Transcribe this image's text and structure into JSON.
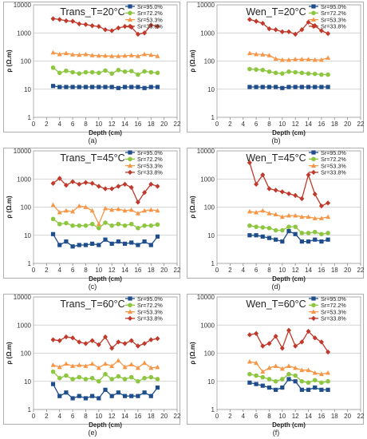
{
  "chart_data": [
    {
      "type": "line",
      "title": "Trans_T=20°C",
      "xlabel": "Depth (cm)",
      "ylabel": "ρ (Ω.m)",
      "caption": "(a)",
      "xlim": [
        0,
        22
      ],
      "xticks": [
        "0",
        "2",
        "4",
        "6",
        "8",
        "10",
        "12",
        "14",
        "16",
        "18",
        "20",
        "22"
      ],
      "ylim": [
        1,
        10000
      ],
      "yscale": "log",
      "yticks": [
        "1",
        "10",
        "100",
        "1000",
        "10000"
      ],
      "grid": true,
      "legend_position": "top-right",
      "x": [
        3,
        4,
        5,
        6,
        7,
        8,
        9,
        10,
        11,
        12,
        13,
        14,
        15,
        16,
        17,
        18,
        19
      ],
      "series": [
        {
          "name": "Sr=95.0%",
          "color": "#1f4e8c",
          "marker": "square",
          "values": [
            13,
            12,
            12,
            12,
            12,
            12,
            12,
            12,
            12,
            12,
            11,
            12,
            12,
            12,
            11,
            12,
            12
          ]
        },
        {
          "name": "Sr=72.2%",
          "color": "#8dc63f",
          "marker": "circle",
          "values": [
            58,
            38,
            45,
            40,
            36,
            40,
            40,
            38,
            46,
            36,
            48,
            42,
            44,
            33,
            43,
            40,
            38
          ]
        },
        {
          "name": "Sr=53.3%",
          "color": "#f79646",
          "marker": "triangle",
          "values": [
            200,
            175,
            190,
            170,
            165,
            175,
            160,
            155,
            155,
            150,
            150,
            155,
            160,
            150,
            175,
            165,
            150
          ]
        },
        {
          "name": "Sr=33.8%",
          "color": "#c0392b",
          "marker": "diamond",
          "values": [
            3200,
            3000,
            2700,
            2600,
            2100,
            2000,
            1800,
            1700,
            1300,
            1200,
            1500,
            1700,
            1600,
            900,
            1000,
            1900,
            1700
          ]
        }
      ]
    },
    {
      "type": "line",
      "title": "Wen_T=20°C",
      "xlabel": "Depth (cm)",
      "ylabel": "ρ (Ω.m)",
      "caption": "(b)",
      "xlim": [
        0,
        22
      ],
      "xticks": [
        "0",
        "2",
        "4",
        "6",
        "8",
        "10",
        "12",
        "14",
        "16",
        "18",
        "20",
        "22"
      ],
      "ylim": [
        1,
        10000
      ],
      "yscale": "log",
      "yticks": [
        "1",
        "10",
        "100",
        "1000",
        "10000"
      ],
      "grid": true,
      "legend_position": "top-right",
      "x": [
        5,
        6,
        7,
        8,
        9,
        10,
        11,
        12,
        13,
        14,
        15,
        16,
        17
      ],
      "series": [
        {
          "name": "Sr=95.0%",
          "color": "#1f4e8c",
          "marker": "square",
          "values": [
            12,
            12,
            12,
            12,
            12,
            11,
            12,
            12,
            12,
            12,
            12,
            12,
            12
          ]
        },
        {
          "name": "Sr=72.2%",
          "color": "#8dc63f",
          "marker": "circle",
          "values": [
            52,
            50,
            48,
            42,
            38,
            36,
            42,
            40,
            38,
            36,
            35,
            33,
            33
          ]
        },
        {
          "name": "Sr=53.3%",
          "color": "#f79646",
          "marker": "triangle",
          "values": [
            190,
            175,
            170,
            160,
            120,
            110,
            110,
            115,
            115,
            115,
            110,
            110,
            130
          ]
        },
        {
          "name": "Sr=33.8%",
          "color": "#c0392b",
          "marker": "diamond",
          "values": [
            3000,
            2600,
            2200,
            1400,
            1300,
            1100,
            1100,
            900,
            1300,
            2400,
            1800,
            1200,
            950
          ]
        }
      ]
    },
    {
      "type": "line",
      "title": "Trans_T=45°C",
      "xlabel": "Depth (cm)",
      "ylabel": "ρ (Ω.m)",
      "caption": "(c)",
      "xlim": [
        0,
        22
      ],
      "xticks": [
        "0",
        "2",
        "4",
        "6",
        "8",
        "10",
        "12",
        "14",
        "16",
        "18",
        "20",
        "22"
      ],
      "ylim": [
        1,
        10000
      ],
      "yscale": "log",
      "yticks": [
        "1",
        "10",
        "100",
        "1000",
        "10000"
      ],
      "grid": true,
      "legend_position": "top-right",
      "x": [
        3,
        4,
        5,
        6,
        7,
        8,
        9,
        10,
        11,
        12,
        13,
        14,
        15,
        16,
        17,
        18,
        19
      ],
      "series": [
        {
          "name": "Sr=95.0%",
          "color": "#1f4e8c",
          "marker": "square",
          "values": [
            11,
            4.5,
            6,
            4,
            4.5,
            4.5,
            5,
            4.5,
            7,
            5,
            6,
            5,
            5.5,
            4.5,
            6,
            4.5,
            9
          ]
        },
        {
          "name": "Sr=72.2%",
          "color": "#8dc63f",
          "marker": "circle",
          "values": [
            38,
            25,
            27,
            22,
            22,
            22,
            25,
            18,
            28,
            22,
            25,
            22,
            25,
            18,
            22,
            22,
            24
          ]
        },
        {
          "name": "Sr=53.3%",
          "color": "#f79646",
          "marker": "triangle",
          "values": [
            120,
            65,
            75,
            70,
            110,
            100,
            75,
            25,
            90,
            80,
            85,
            75,
            80,
            60,
            75,
            80,
            75
          ]
        },
        {
          "name": "Sr=33.8%",
          "color": "#c0392b",
          "marker": "diamond",
          "values": [
            700,
            1050,
            600,
            800,
            650,
            750,
            700,
            550,
            450,
            450,
            550,
            650,
            500,
            150,
            330,
            650,
            550
          ]
        }
      ]
    },
    {
      "type": "line",
      "title": "Wen_T=45°C",
      "xlabel": "Depth (cm)",
      "ylabel": "ρ (Ω.m)",
      "caption": "(d)",
      "xlim": [
        0,
        22
      ],
      "xticks": [
        "0",
        "2",
        "4",
        "6",
        "8",
        "10",
        "12",
        "14",
        "16",
        "18",
        "20",
        "22"
      ],
      "ylim": [
        1,
        10000
      ],
      "yscale": "log",
      "yticks": [
        "1",
        "10",
        "100",
        "1000",
        "10000"
      ],
      "grid": true,
      "legend_position": "top-right",
      "x": [
        5,
        6,
        7,
        8,
        9,
        10,
        11,
        12,
        13,
        14,
        15,
        16,
        17
      ],
      "series": [
        {
          "name": "Sr=95.0%",
          "color": "#1f4e8c",
          "marker": "square",
          "values": [
            10,
            10,
            9,
            8,
            7,
            6,
            14,
            11,
            6,
            6,
            7,
            6,
            7
          ]
        },
        {
          "name": "Sr=72.2%",
          "color": "#8dc63f",
          "marker": "circle",
          "values": [
            22,
            20,
            19,
            18,
            15,
            15,
            20,
            20,
            12,
            12,
            13,
            11,
            12
          ]
        },
        {
          "name": "Sr=53.3%",
          "color": "#f79646",
          "marker": "triangle",
          "values": [
            70,
            65,
            75,
            60,
            55,
            45,
            50,
            50,
            45,
            45,
            40,
            40,
            45
          ]
        },
        {
          "name": "Sr=33.8%",
          "color": "#c0392b",
          "marker": "diamond",
          "values": [
            3800,
            650,
            1400,
            450,
            400,
            350,
            300,
            260,
            200,
            1400,
            290,
            110,
            140
          ]
        }
      ]
    },
    {
      "type": "line",
      "title": "Trans_T=60°C",
      "xlabel": "Depth (cm)",
      "ylabel": "ρ (Ω.m)",
      "caption": "(e)",
      "xlim": [
        0,
        22
      ],
      "xticks": [
        "0",
        "2",
        "4",
        "6",
        "8",
        "10",
        "12",
        "14",
        "16",
        "18",
        "20",
        "22"
      ],
      "ylim": [
        1,
        10000
      ],
      "yscale": "log",
      "yticks": [
        "1",
        "10",
        "100",
        "1000",
        "10000"
      ],
      "grid": true,
      "legend_position": "top-right",
      "x": [
        3,
        4,
        5,
        6,
        7,
        8,
        9,
        10,
        11,
        12,
        13,
        14,
        15,
        16,
        17,
        18,
        19
      ],
      "series": [
        {
          "name": "Sr=95.0%",
          "color": "#1f4e8c",
          "marker": "square",
          "values": [
            8,
            3,
            4,
            2.5,
            3,
            2.5,
            3,
            2.5,
            5,
            3,
            4,
            3,
            3,
            3,
            4,
            3,
            6
          ]
        },
        {
          "name": "Sr=72.2%",
          "color": "#8dc63f",
          "marker": "circle",
          "values": [
            22,
            13,
            16,
            12,
            14,
            12,
            13,
            10,
            18,
            12,
            15,
            12,
            14,
            10,
            13,
            14,
            12
          ]
        },
        {
          "name": "Sr=53.3%",
          "color": "#f79646",
          "marker": "triangle",
          "values": [
            38,
            32,
            42,
            35,
            38,
            35,
            42,
            30,
            42,
            35,
            55,
            32,
            40,
            30,
            45,
            30,
            32
          ]
        },
        {
          "name": "Sr=33.8%",
          "color": "#c0392b",
          "marker": "diamond",
          "values": [
            300,
            280,
            380,
            350,
            250,
            220,
            280,
            200,
            380,
            150,
            250,
            220,
            280,
            180,
            220,
            300,
            330
          ]
        }
      ]
    },
    {
      "type": "line",
      "title": "Wen_T=60°C",
      "xlabel": "Depth (cm)",
      "ylabel": "ρ (Ω.m)",
      "caption": "(f)",
      "xlim": [
        0,
        22
      ],
      "xticks": [
        "0",
        "2",
        "4",
        "6",
        "8",
        "10",
        "12",
        "14",
        "16",
        "18",
        "20",
        "22"
      ],
      "ylim": [
        1,
        10000
      ],
      "yscale": "log",
      "yticks": [
        "1",
        "10",
        "100",
        "1000",
        "10000"
      ],
      "grid": true,
      "legend_position": "top-right",
      "x": [
        5,
        6,
        7,
        8,
        9,
        10,
        11,
        12,
        13,
        14,
        15,
        16,
        17
      ],
      "series": [
        {
          "name": "Sr=95.0%",
          "color": "#1f4e8c",
          "marker": "square",
          "values": [
            9,
            8,
            7,
            6,
            5,
            6,
            12,
            10,
            5,
            5,
            6,
            5,
            5
          ]
        },
        {
          "name": "Sr=72.2%",
          "color": "#8dc63f",
          "marker": "circle",
          "values": [
            18,
            16,
            14,
            12,
            10,
            12,
            18,
            16,
            10,
            9,
            11,
            9,
            10
          ]
        },
        {
          "name": "Sr=53.3%",
          "color": "#f79646",
          "marker": "triangle",
          "values": [
            50,
            45,
            22,
            30,
            35,
            28,
            35,
            30,
            25,
            25,
            20,
            18,
            20
          ]
        },
        {
          "name": "Sr=33.8%",
          "color": "#c0392b",
          "marker": "diamond",
          "values": [
            450,
            500,
            180,
            220,
            400,
            150,
            650,
            180,
            250,
            600,
            350,
            250,
            110
          ]
        }
      ]
    }
  ]
}
